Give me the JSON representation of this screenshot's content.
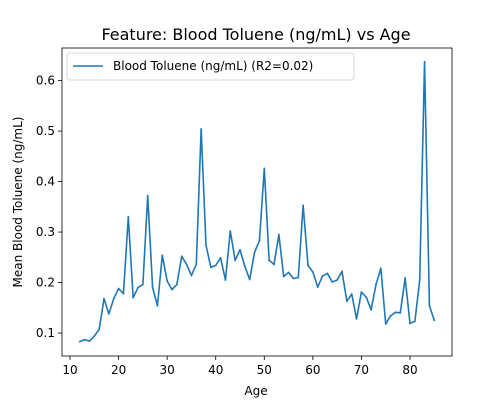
{
  "chart_data": {
    "type": "line",
    "title": "Feature: Blood Toluene (ng/mL) vs Age",
    "xlabel": "Age",
    "ylabel": "Mean Blood Toluene (ng/mL)",
    "xlim": [
      8.35,
      88.65
    ],
    "ylim": [
      0.0545,
      0.6645
    ],
    "x_ticks": [
      10,
      20,
      30,
      40,
      50,
      60,
      70,
      80
    ],
    "y_ticks": [
      0.1,
      0.2,
      0.3,
      0.4,
      0.5,
      0.6
    ],
    "x_tick_labels": [
      "10",
      "20",
      "30",
      "40",
      "50",
      "60",
      "70",
      "80"
    ],
    "y_tick_labels": [
      "0.1",
      "0.2",
      "0.3",
      "0.4",
      "0.5",
      "0.6"
    ],
    "legend_position": "upper-left",
    "grid": false,
    "series": [
      {
        "name": "Blood Toluene (ng/mL) (R2=0.02)",
        "color": "#1f77b4",
        "x": [
          12,
          13,
          14,
          15,
          16,
          17,
          18,
          19,
          20,
          21,
          22,
          23,
          24,
          25,
          26,
          27,
          28,
          29,
          30,
          31,
          32,
          33,
          34,
          35,
          36,
          37,
          38,
          39,
          40,
          41,
          42,
          43,
          44,
          45,
          46,
          47,
          48,
          49,
          50,
          51,
          52,
          53,
          54,
          55,
          56,
          57,
          58,
          59,
          60,
          61,
          62,
          63,
          64,
          65,
          66,
          67,
          68,
          69,
          70,
          71,
          72,
          73,
          74,
          75,
          76,
          77,
          78,
          79,
          80,
          81,
          82,
          83,
          84,
          85
        ],
        "y": [
          0.083,
          0.087,
          0.084,
          0.094,
          0.107,
          0.168,
          0.138,
          0.168,
          0.188,
          0.178,
          0.33,
          0.17,
          0.19,
          0.196,
          0.372,
          0.19,
          0.154,
          0.254,
          0.203,
          0.186,
          0.196,
          0.252,
          0.236,
          0.214,
          0.236,
          0.504,
          0.274,
          0.23,
          0.234,
          0.249,
          0.205,
          0.302,
          0.244,
          0.265,
          0.232,
          0.206,
          0.26,
          0.283,
          0.426,
          0.244,
          0.236,
          0.295,
          0.212,
          0.22,
          0.208,
          0.21,
          0.353,
          0.234,
          0.221,
          0.191,
          0.213,
          0.218,
          0.201,
          0.205,
          0.222,
          0.163,
          0.177,
          0.128,
          0.181,
          0.171,
          0.146,
          0.196,
          0.228,
          0.118,
          0.134,
          0.141,
          0.14,
          0.209,
          0.119,
          0.123,
          0.204,
          0.637,
          0.154,
          0.125
        ]
      }
    ]
  }
}
